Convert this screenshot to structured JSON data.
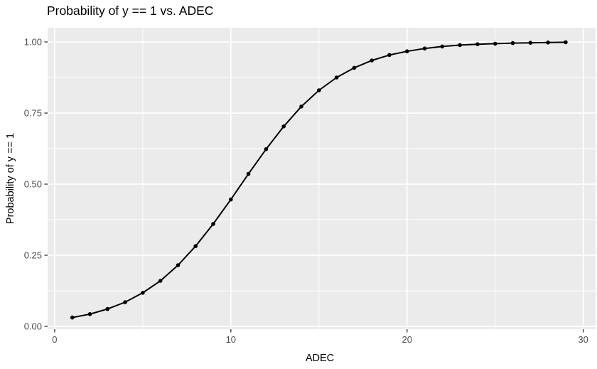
{
  "chart_data": {
    "type": "line",
    "title": "Probability of y == 1 vs. ADEC",
    "xlabel": "ADEC",
    "ylabel": "Probability of y == 1",
    "x": [
      1,
      2,
      3,
      4,
      5,
      6,
      7,
      8,
      9,
      10,
      11,
      12,
      13,
      14,
      15,
      16,
      17,
      18,
      19,
      20,
      21,
      22,
      23,
      24,
      25,
      26,
      27,
      28,
      29
    ],
    "y": [
      0.031,
      0.043,
      0.061,
      0.085,
      0.118,
      0.16,
      0.215,
      0.282,
      0.36,
      0.446,
      0.536,
      0.623,
      0.703,
      0.773,
      0.83,
      0.875,
      0.909,
      0.935,
      0.954,
      0.967,
      0.977,
      0.984,
      0.989,
      0.992,
      0.994,
      0.996,
      0.997,
      0.998,
      0.999
    ],
    "x_ticks": {
      "values": [
        0,
        10,
        20,
        30
      ],
      "labels": [
        "0",
        "10",
        "20",
        "30"
      ]
    },
    "y_ticks": {
      "values": [
        0,
        0.25,
        0.5,
        0.75,
        1
      ],
      "labels": [
        "0.00",
        "0.25",
        "0.50",
        "0.75",
        "1.00"
      ]
    },
    "x_minor": [
      5,
      15,
      25
    ],
    "y_minor": [
      0.125,
      0.375,
      0.625,
      0.875
    ],
    "xlim": [
      -0.4,
      30.7
    ],
    "ylim": [
      -0.01,
      1.05
    ],
    "grid": "ggplot major+minor white gridlines on gray panel",
    "legend": "none",
    "colors": {
      "panel_bg": "#EBEBEB",
      "grid": "#FFFFFF",
      "line": "#000000",
      "point": "#000000",
      "tick": "#333333",
      "tick_label": "#4D4D4D",
      "title": "#000000"
    }
  }
}
